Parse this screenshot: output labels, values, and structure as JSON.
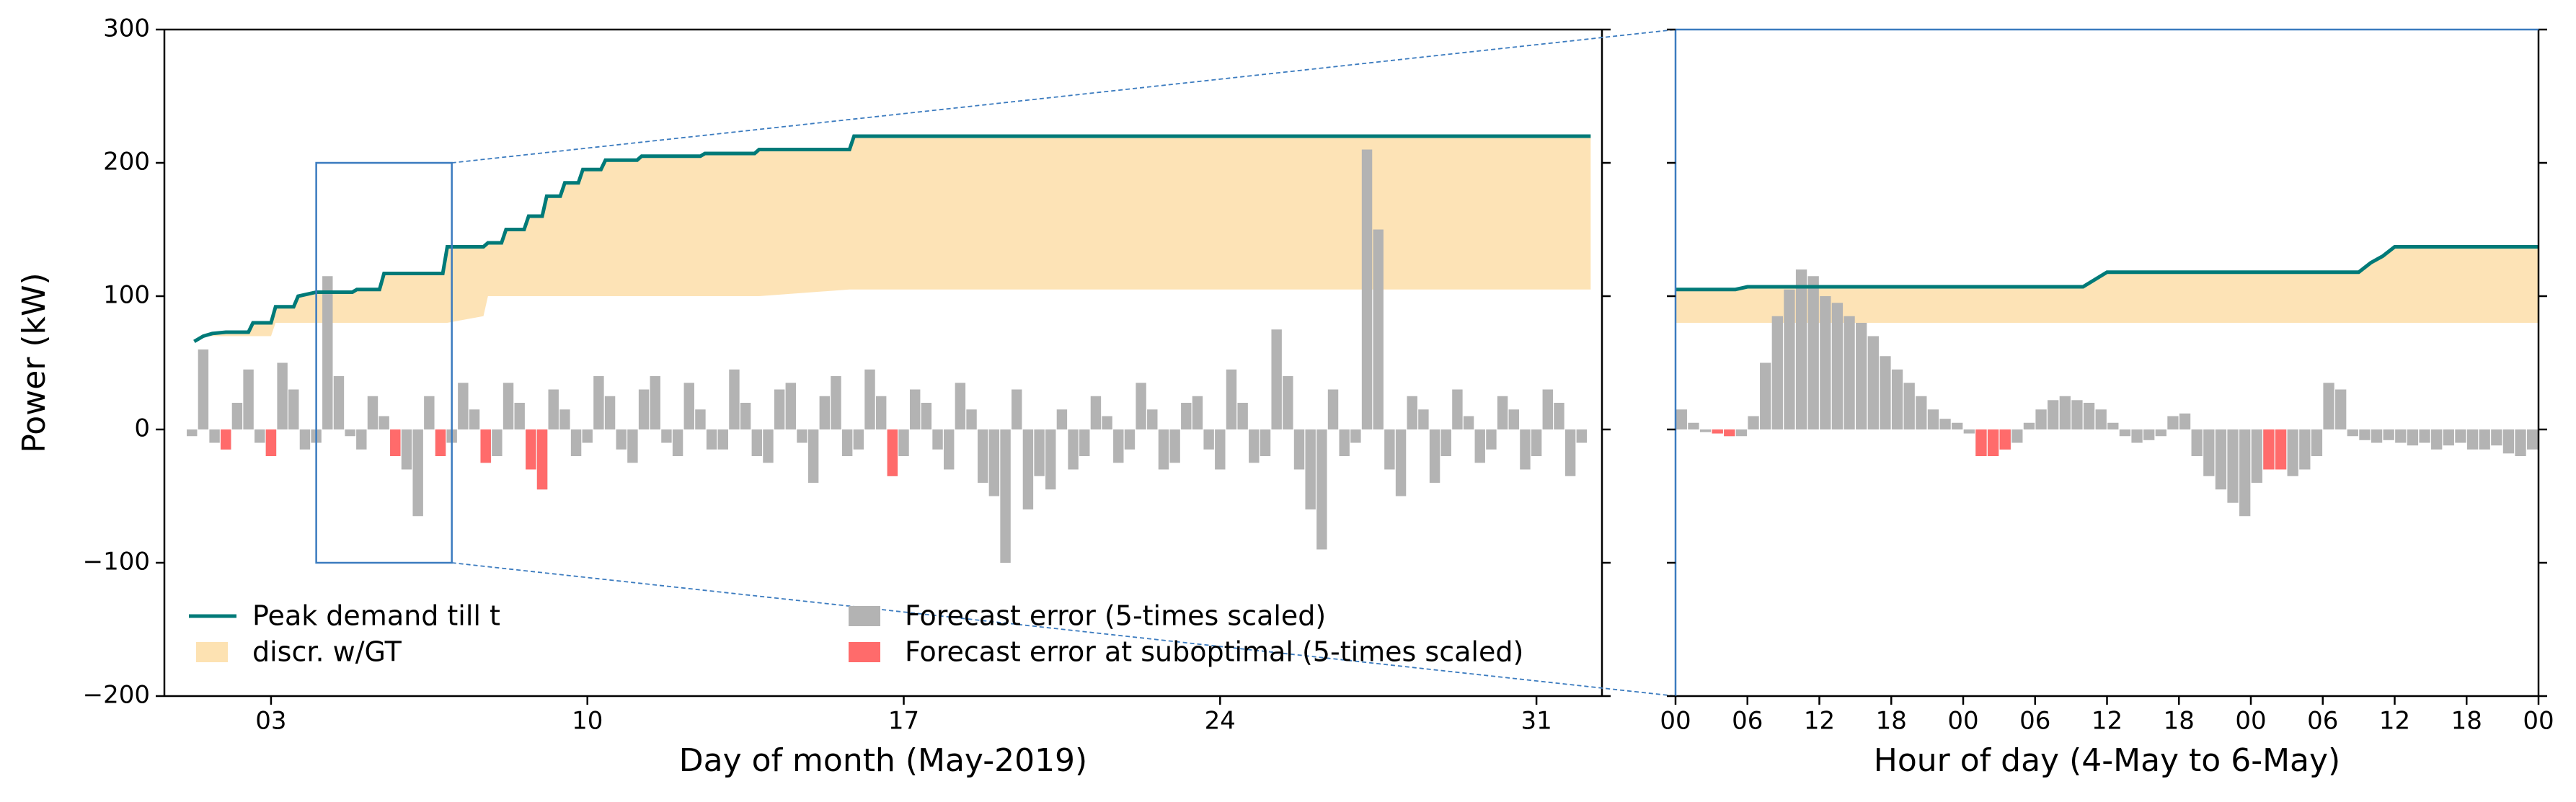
{
  "chart_data": [
    {
      "type": "combo",
      "xlabel": "Day of month (May-2019)",
      "ylabel": "Power (kW)",
      "xlim": [
        0.64,
        32.45
      ],
      "xticks": [
        {
          "value": 3,
          "label": "03"
        },
        10,
        17,
        24,
        31
      ],
      "ylim": [
        -200,
        300
      ],
      "yticks": [
        {
          "value": -200,
          "label": "−200"
        },
        {
          "value": -100,
          "label": "−100"
        },
        0,
        100,
        200,
        300
      ],
      "zoom_box": {
        "xlim": [
          4,
          7
        ],
        "ylim": [
          -100,
          200
        ]
      },
      "series": [
        {
          "name": "Peak demand till t",
          "kind": "line",
          "color": "#007a78",
          "x": [
            1.3,
            1.5,
            1.7,
            2.0,
            2.5,
            2.6,
            3.0,
            3.1,
            3.5,
            3.6,
            4.0,
            4.8,
            4.9,
            5.4,
            5.5,
            6.8,
            6.9,
            7.7,
            7.8,
            8.1,
            8.2,
            8.6,
            8.7,
            9.0,
            9.1,
            9.4,
            9.5,
            9.8,
            9.9,
            10.3,
            10.4,
            11.1,
            11.2,
            12.5,
            12.6,
            13.7,
            13.8,
            15.8,
            15.9,
            32.2
          ],
          "values": [
            66,
            70,
            72,
            73,
            73,
            80,
            80,
            92,
            92,
            100,
            103,
            103,
            105,
            105,
            117,
            117,
            137,
            137,
            140,
            140,
            150,
            150,
            160,
            160,
            175,
            175,
            185,
            185,
            195,
            195,
            202,
            202,
            205,
            205,
            207,
            207,
            210,
            210,
            220,
            220
          ]
        },
        {
          "name": "discr. w/GT",
          "kind": "band",
          "color": "#fde2b2",
          "x": [
            1.3,
            1.5,
            1.7,
            2.0,
            2.5,
            2.6,
            3.0,
            3.1,
            3.5,
            3.6,
            4.0,
            4.8,
            4.9,
            5.4,
            5.5,
            6.8,
            6.9,
            7.7,
            7.8,
            8.1,
            8.2,
            8.6,
            8.7,
            9.0,
            9.1,
            9.4,
            9.5,
            9.8,
            9.9,
            10.3,
            10.4,
            11.1,
            11.2,
            12.5,
            12.6,
            13.7,
            13.8,
            15.8,
            15.9,
            32.2
          ],
          "lower": [
            66,
            70,
            70,
            70,
            70,
            70,
            70,
            80,
            80,
            80,
            80,
            80,
            80,
            80,
            80,
            80,
            80,
            85,
            100,
            100,
            100,
            100,
            100,
            100,
            100,
            100,
            100,
            100,
            100,
            100,
            100,
            100,
            100,
            100,
            100,
            100,
            100,
            105,
            105,
            105
          ],
          "upper": [
            66,
            70,
            72,
            73,
            73,
            80,
            80,
            92,
            92,
            100,
            103,
            103,
            105,
            105,
            117,
            117,
            137,
            137,
            140,
            140,
            150,
            150,
            160,
            160,
            175,
            175,
            185,
            185,
            195,
            195,
            202,
            202,
            205,
            205,
            207,
            207,
            210,
            210,
            220,
            220
          ]
        },
        {
          "name": "Forecast error (5-times scaled)",
          "kind": "bar",
          "color": "#b3b3b3",
          "x": [
            1.25,
            1.5,
            1.75,
            2.0,
            2.25,
            2.5,
            2.75,
            3.0,
            3.25,
            3.5,
            3.75,
            4.0,
            4.25,
            4.5,
            4.75,
            5.0,
            5.25,
            5.5,
            5.75,
            6.0,
            6.25,
            6.5,
            6.75,
            7.0,
            7.25,
            7.5,
            7.75,
            8.0,
            8.25,
            8.5,
            8.75,
            9.0,
            9.25,
            9.5,
            9.75,
            10.0,
            10.25,
            10.5,
            10.75,
            11.0,
            11.25,
            11.5,
            11.75,
            12.0,
            12.25,
            12.5,
            12.75,
            13.0,
            13.25,
            13.5,
            13.75,
            14.0,
            14.25,
            14.5,
            14.75,
            15.0,
            15.25,
            15.5,
            15.75,
            16.0,
            16.25,
            16.5,
            16.75,
            17.0,
            17.25,
            17.5,
            17.75,
            18.0,
            18.25,
            18.5,
            18.75,
            19.0,
            19.25,
            19.5,
            19.75,
            20.0,
            20.25,
            20.5,
            20.75,
            21.0,
            21.25,
            21.5,
            21.75,
            22.0,
            22.25,
            22.5,
            22.75,
            23.0,
            23.25,
            23.5,
            23.75,
            24.0,
            24.25,
            24.5,
            24.75,
            25.0,
            25.25,
            25.5,
            25.75,
            26.0,
            26.25,
            26.5,
            26.75,
            27.0,
            27.25,
            27.5,
            27.75,
            28.0,
            28.25,
            28.5,
            28.75,
            29.0,
            29.25,
            29.5,
            29.75,
            30.0,
            30.25,
            30.5,
            30.75,
            31.0,
            31.25,
            31.5,
            31.75,
            32.0
          ],
          "values": [
            -5,
            60,
            -10,
            -15,
            20,
            45,
            -10,
            -20,
            50,
            30,
            -15,
            -10,
            115,
            40,
            -5,
            -15,
            25,
            10,
            -20,
            -30,
            -65,
            25,
            -20,
            -10,
            35,
            15,
            -25,
            -20,
            35,
            20,
            -30,
            -45,
            30,
            15,
            -20,
            -10,
            40,
            25,
            -15,
            -25,
            30,
            40,
            -10,
            -20,
            35,
            15,
            -15,
            -15,
            45,
            20,
            -20,
            -25,
            30,
            35,
            -10,
            -40,
            25,
            40,
            -20,
            -15,
            45,
            25,
            -35,
            -20,
            30,
            20,
            -15,
            -30,
            35,
            15,
            -40,
            -50,
            -100,
            30,
            -60,
            -35,
            -45,
            15,
            -30,
            -20,
            25,
            10,
            -25,
            -15,
            35,
            15,
            -30,
            -25,
            20,
            25,
            -15,
            -30,
            45,
            20,
            -25,
            -20,
            75,
            40,
            -30,
            -60,
            -90,
            30,
            -20,
            -10,
            210,
            150,
            -30,
            -50,
            25,
            15,
            -40,
            -20,
            30,
            10,
            -25,
            -15,
            25,
            15,
            -30,
            -20,
            30,
            20,
            -35,
            -10
          ]
        },
        {
          "name": "Forecast error at suboptimal (5-times scaled)",
          "kind": "bar",
          "color": "#ff6b6b",
          "x": [
            2.0,
            3.0,
            5.75,
            6.75,
            7.75,
            8.75,
            9.0,
            16.75
          ],
          "values": [
            -15,
            -20,
            -20,
            -20,
            -25,
            -30,
            -45,
            -35
          ]
        }
      ]
    },
    {
      "type": "combo",
      "xlabel": "Hour of day (4-May to 6-May)",
      "xlim": [
        0,
        72
      ],
      "xticks": [
        {
          "value": 0,
          "label": "00"
        },
        {
          "value": 6,
          "label": "06"
        },
        12,
        18,
        {
          "value": 24,
          "label": "00"
        },
        {
          "value": 30,
          "label": "06"
        },
        {
          "value": 36,
          "label": "12"
        },
        {
          "value": 42,
          "label": "18"
        },
        {
          "value": 48,
          "label": "00"
        },
        {
          "value": 54,
          "label": "06"
        },
        {
          "value": 60,
          "label": "12"
        },
        {
          "value": 66,
          "label": "18"
        },
        {
          "value": 72,
          "label": "00"
        }
      ],
      "ylim": [
        -200,
        300
      ],
      "yticks": [
        -200,
        -100,
        0,
        100,
        200,
        300
      ],
      "series": [
        {
          "kind": "line",
          "color": "#007a78",
          "x": [
            0,
            5,
            6,
            34,
            36,
            57,
            58,
            59,
            60,
            72
          ],
          "values": [
            105,
            105,
            107,
            107,
            118,
            118,
            125,
            130,
            137,
            137
          ]
        },
        {
          "kind": "band",
          "color": "#fde2b2",
          "x": [
            0,
            5,
            6,
            34,
            36,
            57,
            58,
            59,
            60,
            72
          ],
          "lower": [
            80,
            80,
            80,
            80,
            80,
            80,
            80,
            80,
            80,
            80
          ],
          "upper": [
            105,
            105,
            107,
            107,
            118,
            118,
            125,
            130,
            137,
            137
          ]
        },
        {
          "kind": "bar",
          "color": "#b3b3b3",
          "x": [
            0.5,
            1.5,
            2.5,
            3.5,
            4.5,
            5.5,
            6.5,
            7.5,
            8.5,
            9.5,
            10.5,
            11.5,
            12.5,
            13.5,
            14.5,
            15.5,
            16.5,
            17.5,
            18.5,
            19.5,
            20.5,
            21.5,
            22.5,
            23.5,
            24.5,
            25.5,
            26.5,
            27.5,
            28.5,
            29.5,
            30.5,
            31.5,
            32.5,
            33.5,
            34.5,
            35.5,
            36.5,
            37.5,
            38.5,
            39.5,
            40.5,
            41.5,
            42.5,
            43.5,
            44.5,
            45.5,
            46.5,
            47.5,
            48.5,
            49.5,
            50.5,
            51.5,
            52.5,
            53.5,
            54.5,
            55.5,
            56.5,
            57.5,
            58.5,
            59.5,
            60.5,
            61.5,
            62.5,
            63.5,
            64.5,
            65.5,
            66.5,
            67.5,
            68.5,
            69.5,
            70.5,
            71.5
          ],
          "values": [
            15,
            5,
            -2,
            -3,
            -5,
            -5,
            10,
            50,
            85,
            105,
            120,
            115,
            100,
            95,
            85,
            80,
            70,
            55,
            45,
            35,
            25,
            15,
            8,
            5,
            -3,
            -20,
            -20,
            -15,
            -10,
            5,
            15,
            22,
            25,
            22,
            20,
            15,
            5,
            -5,
            -10,
            -8,
            -5,
            10,
            12,
            -20,
            -35,
            -45,
            -55,
            -65,
            -40,
            -30,
            -30,
            -35,
            -30,
            -20,
            35,
            30,
            -5,
            -8,
            -10,
            -8,
            -10,
            -12,
            -10,
            -15,
            -12,
            -10,
            -15,
            -15,
            -12,
            -18,
            -20,
            -15
          ]
        },
        {
          "kind": "bar",
          "color": "#ff6b6b",
          "x": [
            3.5,
            4.5,
            25.5,
            26.5,
            27.5,
            49.5,
            50.5
          ],
          "values": [
            -3,
            -5,
            -20,
            -20,
            -15,
            -30,
            -30
          ]
        }
      ]
    }
  ]
}
